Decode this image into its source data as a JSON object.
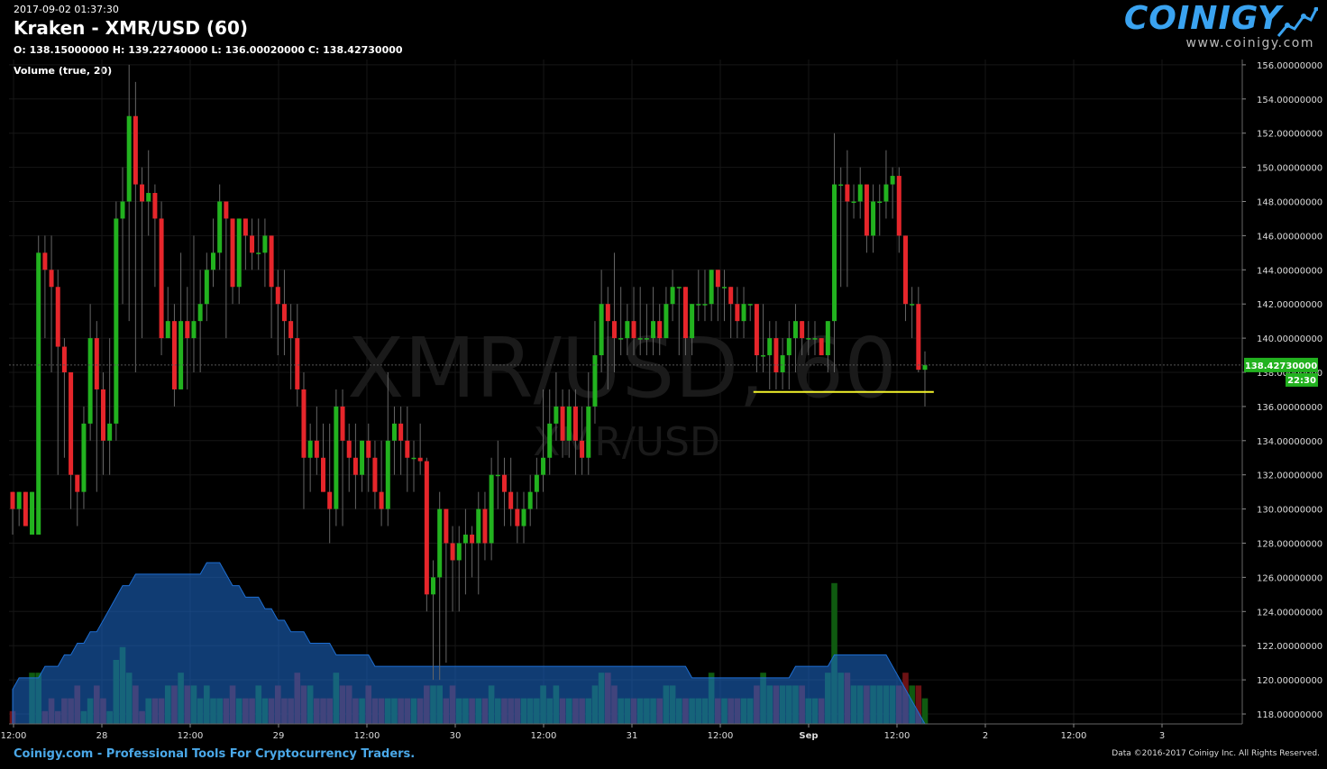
{
  "header": {
    "timestamp": "2017-09-02 01:37:30",
    "title": "Kraken - XMR/USD (60)",
    "ohlc": "O: 138.15000000 H: 139.22740000 L: 136.00020000 C: 138.42730000",
    "volume_label": "Volume (true, 20)"
  },
  "logo": {
    "name": "COINIGY",
    "url": "www.coinigy.com",
    "icon": "chart-line-icon"
  },
  "watermark": {
    "main": "XMR/USD, 60",
    "sub": "XMR/USD"
  },
  "price_badge": {
    "value": "138.42730000",
    "countdown": "22:30"
  },
  "footer": {
    "left": "Coinigy.com - Professional Tools For Cryptocurrency Traders.",
    "right": "Data ©2016-2017 Coinigy Inc. All Rights Reserved."
  },
  "colors": {
    "up": "#22b21f",
    "down": "#e6262b",
    "accent": "#3aa3f0",
    "line": "#f5f52a"
  },
  "chart_data": {
    "type": "candlestick",
    "ylim": [
      117,
      157
    ],
    "y_ticks": [
      "118.00000000",
      "120.00000000",
      "122.00000000",
      "124.00000000",
      "126.00000000",
      "128.00000000",
      "130.00000000",
      "132.00000000",
      "134.00000000",
      "136.00000000",
      "138.00000000",
      "140.00000000",
      "142.00000000",
      "144.00000000",
      "146.00000000",
      "148.00000000",
      "150.00000000",
      "152.00000000",
      "154.00000000",
      "156.00000000"
    ],
    "x_ticks": [
      "12:00",
      "28",
      "12:00",
      "29",
      "12:00",
      "30",
      "12:00",
      "31",
      "12:00",
      "Sep",
      "12:00",
      "2",
      "12:00",
      "3"
    ],
    "x_tick_hours": [
      -12,
      0,
      12,
      24,
      36,
      48,
      60,
      72,
      84,
      96,
      108,
      120,
      132,
      144
    ],
    "support_line": {
      "price": 136.85,
      "from_hour": 88.5,
      "to_hour": 113
    },
    "current_price": 138.4273,
    "candles": [
      [
        131,
        130,
        131,
        128.5,
        1
      ],
      [
        130,
        131,
        131,
        129,
        0
      ],
      [
        131,
        129,
        131,
        129,
        0
      ],
      [
        128.5,
        131,
        131,
        128.5,
        4
      ],
      [
        128.5,
        145,
        146,
        128.5,
        4
      ],
      [
        145,
        144,
        146,
        140,
        1
      ],
      [
        144,
        143,
        146,
        138,
        2
      ],
      [
        143,
        139.5,
        144,
        132,
        1
      ],
      [
        139.5,
        138,
        140,
        133,
        2
      ],
      [
        138,
        132,
        138,
        130,
        2
      ],
      [
        132,
        131,
        132,
        129,
        3
      ],
      [
        131,
        135,
        136,
        130,
        1
      ],
      [
        135,
        140,
        142,
        134,
        2
      ],
      [
        140,
        137,
        141,
        131,
        3
      ],
      [
        137,
        134,
        138,
        132,
        2
      ],
      [
        134,
        135,
        140,
        132,
        1
      ],
      [
        135,
        147,
        148,
        134,
        5
      ],
      [
        147,
        148,
        150,
        142,
        6
      ],
      [
        148,
        153,
        156,
        141,
        4
      ],
      [
        153,
        149,
        155,
        138,
        3
      ],
      [
        149,
        148,
        150,
        140,
        1
      ],
      [
        148,
        148.5,
        151,
        146,
        2
      ],
      [
        148.5,
        147,
        149,
        143,
        2
      ],
      [
        147,
        140,
        148,
        139,
        2
      ],
      [
        140,
        141,
        143,
        140,
        3
      ],
      [
        141,
        137,
        142,
        136,
        3
      ],
      [
        137,
        141,
        145,
        137,
        4
      ],
      [
        141,
        140,
        143,
        137,
        3
      ],
      [
        140,
        141,
        146,
        138,
        3
      ],
      [
        141,
        142,
        144,
        138,
        2
      ],
      [
        142,
        144,
        145,
        141,
        3
      ],
      [
        144,
        145,
        147,
        143,
        2
      ],
      [
        145,
        148,
        149,
        144,
        2
      ],
      [
        148,
        147,
        148,
        140,
        2
      ],
      [
        147,
        143,
        147,
        142,
        3
      ],
      [
        143,
        147,
        147,
        142,
        2
      ],
      [
        147,
        146,
        147,
        144,
        2
      ],
      [
        146,
        145,
        147,
        144,
        2
      ],
      [
        145,
        145,
        147,
        144,
        3
      ],
      [
        145,
        146,
        147,
        143,
        2
      ],
      [
        146,
        143,
        146,
        140,
        2
      ],
      [
        143,
        142,
        144,
        139,
        3
      ],
      [
        142,
        141,
        144,
        139,
        2
      ],
      [
        141,
        140,
        142,
        137,
        2
      ],
      [
        140,
        137,
        142,
        136,
        4
      ],
      [
        137,
        133,
        138,
        130,
        3
      ],
      [
        133,
        134,
        135,
        131,
        3
      ],
      [
        134,
        133,
        136,
        132,
        2
      ],
      [
        133,
        131,
        135,
        131,
        2
      ],
      [
        131,
        130,
        135,
        128,
        2
      ],
      [
        130,
        136,
        137,
        129,
        4
      ],
      [
        136,
        134,
        137,
        129,
        3
      ],
      [
        134,
        133,
        135,
        131,
        3
      ],
      [
        133,
        132,
        135,
        130,
        2
      ],
      [
        132,
        134,
        134,
        131,
        2
      ],
      [
        134,
        133,
        135,
        131,
        3
      ],
      [
        133,
        131,
        134,
        130,
        2
      ],
      [
        131,
        130,
        134,
        129,
        2
      ],
      [
        130,
        134,
        138,
        129,
        2
      ],
      [
        134,
        135,
        136,
        132,
        2
      ],
      [
        135,
        134,
        136,
        132,
        2
      ],
      [
        134,
        133,
        136,
        131,
        2
      ],
      [
        133,
        133,
        134,
        131,
        2
      ],
      [
        133,
        132.8,
        135,
        132,
        2
      ],
      [
        132.8,
        125,
        133,
        124,
        3
      ],
      [
        125,
        126,
        127,
        120,
        3
      ],
      [
        126,
        130,
        131,
        120,
        3
      ],
      [
        130,
        128,
        130,
        121,
        2
      ],
      [
        128,
        127,
        129,
        124,
        3
      ],
      [
        127,
        128,
        129,
        124,
        2
      ],
      [
        128,
        128.5,
        130,
        125,
        2
      ],
      [
        128.5,
        128,
        129,
        126,
        2
      ],
      [
        128,
        130,
        131,
        125,
        2
      ],
      [
        130,
        128,
        131,
        127,
        2
      ],
      [
        128,
        132,
        133,
        127,
        3
      ],
      [
        132,
        132,
        134,
        130,
        2
      ],
      [
        132,
        131,
        133,
        129,
        2
      ],
      [
        131,
        130,
        133,
        129,
        2
      ],
      [
        130,
        129,
        131,
        128,
        2
      ],
      [
        129,
        130,
        131,
        128,
        2
      ],
      [
        130,
        131,
        132,
        129,
        2
      ],
      [
        131,
        132,
        133,
        130,
        2
      ],
      [
        132,
        133,
        137,
        131,
        3
      ],
      [
        133,
        135,
        137,
        132,
        2
      ],
      [
        135,
        136,
        138,
        134,
        3
      ],
      [
        136,
        134,
        137,
        133,
        2
      ],
      [
        134,
        136,
        137,
        133,
        2
      ],
      [
        136,
        134,
        137,
        132,
        2
      ],
      [
        134,
        133,
        136,
        132,
        2
      ],
      [
        133,
        136,
        138,
        132,
        2
      ],
      [
        136,
        139,
        141,
        135,
        3
      ],
      [
        139,
        142,
        144,
        138,
        4
      ],
      [
        142,
        141,
        143,
        137,
        4
      ],
      [
        141,
        140,
        145,
        138,
        3
      ],
      [
        140,
        140,
        143,
        139,
        2
      ],
      [
        140,
        141,
        142,
        139,
        2
      ],
      [
        141,
        140,
        143,
        139,
        2
      ],
      [
        140,
        140,
        143,
        139,
        2
      ],
      [
        140,
        140,
        142,
        139,
        2
      ],
      [
        140,
        141,
        143,
        139,
        2
      ],
      [
        141,
        140,
        142,
        139,
        2
      ],
      [
        140,
        142,
        143,
        140,
        3
      ],
      [
        142,
        143,
        144,
        141,
        3
      ],
      [
        143,
        143,
        143,
        139,
        2
      ],
      [
        143,
        140,
        143,
        139,
        2
      ],
      [
        140,
        142,
        142,
        139,
        2
      ],
      [
        142,
        142,
        144,
        141,
        2
      ],
      [
        142,
        142,
        144,
        141,
        2
      ],
      [
        142,
        144,
        144,
        141,
        4
      ],
      [
        144,
        143,
        144,
        141,
        2
      ],
      [
        143,
        143,
        144,
        141,
        2
      ],
      [
        143,
        142,
        143,
        140,
        2
      ],
      [
        142,
        141,
        143,
        140,
        2
      ],
      [
        141,
        142,
        143,
        140,
        2
      ],
      [
        142,
        142,
        142,
        141,
        2
      ],
      [
        142,
        139,
        142,
        138,
        3
      ],
      [
        139,
        139,
        142,
        138,
        4
      ],
      [
        139,
        140,
        141,
        137,
        3
      ],
      [
        140,
        138,
        141,
        137,
        3
      ],
      [
        138,
        139,
        140,
        137,
        3
      ],
      [
        139,
        140,
        141,
        137,
        3
      ],
      [
        140,
        141,
        142,
        138,
        3
      ],
      [
        141,
        140,
        141,
        139,
        3
      ],
      [
        140,
        140,
        141,
        139,
        2
      ],
      [
        140,
        140,
        141,
        139,
        2
      ],
      [
        140,
        139,
        140,
        139,
        2
      ],
      [
        139,
        141,
        141,
        138,
        4
      ],
      [
        141,
        149,
        152,
        138,
        11
      ],
      [
        149,
        149,
        150,
        143,
        4
      ],
      [
        149,
        148,
        151,
        143,
        4
      ],
      [
        148,
        148,
        149,
        147,
        3
      ],
      [
        148,
        149,
        150,
        147,
        3
      ],
      [
        149,
        146,
        149,
        145,
        3
      ],
      [
        146,
        148,
        149,
        145,
        3
      ],
      [
        148,
        148,
        149,
        146,
        3
      ],
      [
        148,
        149,
        151,
        147,
        3
      ],
      [
        149,
        149.5,
        150,
        147,
        3
      ],
      [
        149.5,
        146,
        150,
        145,
        3
      ],
      [
        146,
        142,
        146,
        141,
        4
      ],
      [
        142,
        142,
        143,
        140,
        3
      ],
      [
        142,
        138.15,
        143,
        138,
        3
      ],
      [
        138.15,
        138.43,
        139.23,
        136,
        2
      ]
    ],
    "volume_mavg": [
      3,
      4,
      4,
      4,
      4,
      5,
      5,
      5,
      6,
      6,
      7,
      7,
      8,
      8,
      9,
      10,
      11,
      12,
      12,
      13,
      13,
      13,
      13,
      13,
      13,
      13,
      13,
      13,
      13,
      13,
      14,
      14,
      14,
      13,
      12,
      12,
      11,
      11,
      11,
      10,
      10,
      9,
      9,
      8,
      8,
      8,
      7,
      7,
      7,
      7,
      6,
      6,
      6,
      6,
      6,
      6,
      5,
      5,
      5,
      5,
      5,
      5,
      5,
      5,
      5,
      5,
      5,
      5,
      5,
      5,
      5,
      5,
      5,
      5,
      5,
      5,
      5,
      5,
      5,
      5,
      5,
      5,
      5,
      5,
      5,
      5,
      5,
      5,
      5,
      5,
      5,
      5,
      5,
      5,
      5,
      5,
      5,
      5,
      5,
      5,
      5,
      5,
      5,
      5,
      5,
      4,
      4,
      4,
      4,
      4,
      4,
      4,
      4,
      4,
      4,
      4,
      4,
      4,
      4,
      4,
      4,
      5,
      5,
      5,
      5,
      5,
      5,
      6,
      6,
      6,
      6,
      6,
      6,
      6,
      6,
      6
    ]
  }
}
